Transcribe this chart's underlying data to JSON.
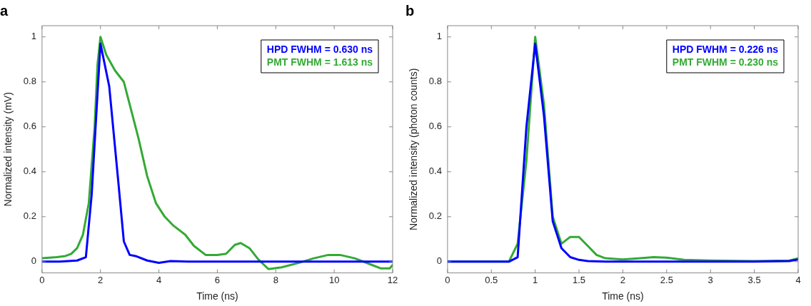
{
  "chart_data": [
    {
      "type": "line",
      "title": "a",
      "xlabel": "Time (ns)",
      "ylabel": "Normalized intensity (mV)",
      "xlim": [
        0,
        12
      ],
      "xticks": [
        0,
        2,
        4,
        6,
        8,
        10,
        12
      ],
      "ylim": [
        -0.05,
        1.05
      ],
      "yticks": [
        0,
        0.2,
        0.4,
        0.6,
        0.8,
        1
      ],
      "grid": false,
      "legend": "top right",
      "marker": "none",
      "line_style": "solid",
      "series": [
        {
          "name": "HPD FWHM = 0.630 ns",
          "color": "#0000ff",
          "x": [
            0,
            0.6,
            1.2,
            1.5,
            1.7,
            1.9,
            2.0,
            2.3,
            2.6,
            2.8,
            3.0,
            3.2,
            3.6,
            4.0,
            4.4,
            5,
            6,
            7,
            8,
            9,
            10,
            11,
            12
          ],
          "values": [
            0,
            0,
            0.005,
            0.02,
            0.3,
            0.75,
            0.97,
            0.78,
            0.37,
            0.09,
            0.03,
            0.025,
            0.005,
            -0.005,
            0.003,
            0,
            0,
            0,
            0,
            0,
            0,
            0,
            0
          ]
        },
        {
          "name": "PMT FWHM = 1.613 ns",
          "color": "#33aa33",
          "x": [
            0,
            0.5,
            0.8,
            1.0,
            1.2,
            1.4,
            1.6,
            1.8,
            1.9,
            2.0,
            2.2,
            2.5,
            2.8,
            3.0,
            3.3,
            3.6,
            3.9,
            4.2,
            4.5,
            4.9,
            5.2,
            5.6,
            6.0,
            6.3,
            6.6,
            6.8,
            7.1,
            7.4,
            7.75,
            8.2,
            8.8,
            9.3,
            9.8,
            10.2,
            10.7,
            11.2,
            11.6,
            11.9,
            12
          ],
          "values": [
            0.015,
            0.02,
            0.025,
            0.035,
            0.06,
            0.12,
            0.26,
            0.6,
            0.88,
            1.0,
            0.92,
            0.85,
            0.8,
            0.7,
            0.55,
            0.38,
            0.26,
            0.2,
            0.16,
            0.12,
            0.07,
            0.03,
            0.03,
            0.035,
            0.075,
            0.083,
            0.06,
            0.01,
            -0.033,
            -0.025,
            -0.005,
            0.015,
            0.03,
            0.03,
            0.015,
            -0.01,
            -0.03,
            -0.03,
            -0.015
          ]
        }
      ]
    },
    {
      "type": "line",
      "title": "b",
      "xlabel": "Time (ns)",
      "ylabel": "Normalized intensity (photon counts)",
      "xlim": [
        0,
        4
      ],
      "xticks": [
        0,
        0.5,
        1,
        1.5,
        2,
        2.5,
        3,
        3.5,
        4
      ],
      "ylim": [
        -0.05,
        1.05
      ],
      "yticks": [
        0,
        0.2,
        0.4,
        0.6,
        0.8,
        1
      ],
      "grid": false,
      "legend": "top right",
      "marker": "none",
      "line_style": "solid",
      "series": [
        {
          "name": "HPD FWHM = 0.226 ns",
          "color": "#0000ff",
          "x": [
            0,
            0.7,
            0.8,
            0.9,
            1.0,
            1.1,
            1.2,
            1.3,
            1.4,
            1.5,
            1.6,
            1.8,
            2.5,
            3.0,
            3.5,
            3.9,
            4.0
          ],
          "values": [
            0,
            0,
            0.02,
            0.6,
            0.97,
            0.65,
            0.18,
            0.06,
            0.02,
            0.008,
            0.003,
            0,
            0,
            0,
            0,
            0.003,
            0.01
          ]
        },
        {
          "name": "PMT FWHM = 0.230 ns",
          "color": "#33aa33",
          "x": [
            0,
            0.7,
            0.8,
            0.9,
            1.0,
            1.1,
            1.2,
            1.3,
            1.4,
            1.5,
            1.6,
            1.7,
            1.8,
            2.0,
            2.2,
            2.35,
            2.5,
            2.7,
            3.0,
            3.5,
            3.9,
            4.0
          ],
          "values": [
            0,
            0,
            0.08,
            0.45,
            1.0,
            0.7,
            0.2,
            0.08,
            0.11,
            0.11,
            0.07,
            0.03,
            0.015,
            0.01,
            0.015,
            0.02,
            0.018,
            0.008,
            0.005,
            0.003,
            0.005,
            0.015
          ]
        }
      ]
    }
  ]
}
